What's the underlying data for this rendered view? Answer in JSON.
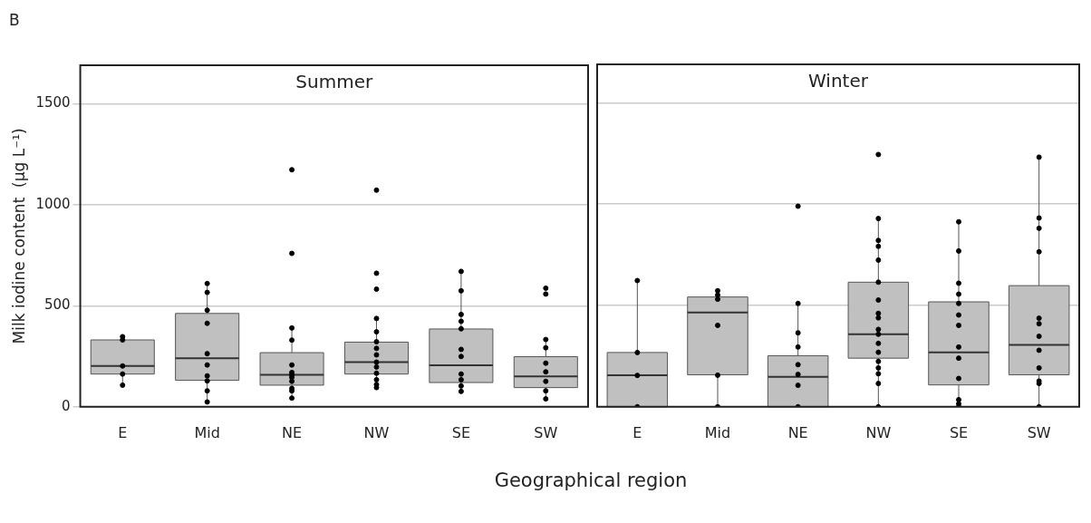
{
  "chart_data": [
    {
      "type": "box",
      "title": "Summer",
      "ylabel": "Milk iodine content  (µg L⁻¹)",
      "xlabel": "Geographical region",
      "annotations": [
        "B"
      ],
      "categories": [
        "E",
        "Mid",
        "NE",
        "NW",
        "SE",
        "SW"
      ],
      "ylim": [
        0,
        1690
      ],
      "yticks": [
        0,
        500,
        1000,
        1500
      ],
      "grid": "y",
      "color": "#c0c0c0",
      "boxes": [
        {
          "low": 107,
          "q1": 162,
          "median": 202,
          "q3": 331,
          "high": 347
        },
        {
          "low": 24,
          "q1": 131,
          "median": 240,
          "q3": 462,
          "high": 610
        },
        {
          "low": 43,
          "q1": 107,
          "median": 158,
          "q3": 268,
          "high": 390
        },
        {
          "low": 95,
          "q1": 162,
          "median": 221,
          "q3": 320,
          "high": 437
        },
        {
          "low": 76,
          "q1": 120,
          "median": 205,
          "q3": 385,
          "high": 670
        },
        {
          "low": 39,
          "q1": 95,
          "median": 151,
          "q3": 248,
          "high": 333
        }
      ],
      "series": [
        {
          "type": "scatter",
          "color": "#000000",
          "marker": "circle",
          "x": [
            "E",
            "E",
            "E",
            "E",
            "E",
            "Mid",
            "Mid",
            "Mid",
            "Mid",
            "Mid",
            "Mid",
            "Mid",
            "Mid",
            "Mid",
            "Mid",
            "NE",
            "NE",
            "NE",
            "NE",
            "NE",
            "NE",
            "NE",
            "NE",
            "NE",
            "NE",
            "NE",
            "NE",
            "NW",
            "NW",
            "NW",
            "NW",
            "NW",
            "NW",
            "NW",
            "NW",
            "NW",
            "NW",
            "NW",
            "NW",
            "NW",
            "NW",
            "SE",
            "SE",
            "SE",
            "SE",
            "SE",
            "SE",
            "SE",
            "SE",
            "SE",
            "SE",
            "SE",
            "SW",
            "SW",
            "SW",
            "SW",
            "SW",
            "SW",
            "SW",
            "SW",
            "SW"
          ],
          "values": [
            347,
            331,
            202,
            162,
            107,
            610,
            566,
            478,
            413,
            263,
            207,
            153,
            128,
            79,
            24,
            1173,
            759,
            390,
            330,
            207,
            170,
            158,
            145,
            126,
            91,
            79,
            43,
            1072,
            661,
            582,
            437,
            371,
            322,
            289,
            257,
            221,
            197,
            166,
            134,
            110,
            95,
            670,
            574,
            457,
            423,
            386,
            284,
            249,
            162,
            134,
            103,
            76,
            587,
            558,
            333,
            292,
            216,
            173,
            126,
            79,
            39
          ]
        }
      ]
    },
    {
      "type": "box",
      "title": "Winter",
      "categories": [
        "E",
        "Mid",
        "NE",
        "NW",
        "SE",
        "SW"
      ],
      "ylim": [
        0,
        1690
      ],
      "yticks": [
        0,
        500,
        1000,
        1500
      ],
      "grid": "y",
      "tick_labels": "x",
      "color": "#c0c0c0",
      "boxes": [
        {
          "low": 0,
          "q1": 0,
          "median": 156,
          "q3": 268,
          "high": 623
        },
        {
          "low": 0,
          "q1": 158,
          "median": 465,
          "q3": 542,
          "high": 573
        },
        {
          "low": 0,
          "q1": 0,
          "median": 148,
          "q3": 252,
          "high": 510
        },
        {
          "low": 0,
          "q1": 240,
          "median": 358,
          "q3": 615,
          "high": 929
        },
        {
          "low": 0,
          "q1": 108,
          "median": 269,
          "q3": 518,
          "high": 913
        },
        {
          "low": 0,
          "q1": 158,
          "median": 306,
          "q3": 598,
          "high": 1232
        }
      ],
      "series": [
        {
          "type": "scatter",
          "color": "#000000",
          "marker": "circle",
          "x": [
            "E",
            "E",
            "E",
            "E",
            "Mid",
            "Mid",
            "Mid",
            "Mid",
            "Mid",
            "Mid",
            "NE",
            "NE",
            "NE",
            "NE",
            "NE",
            "NE",
            "NE",
            "NE",
            "NW",
            "NW",
            "NW",
            "NW",
            "NW",
            "NW",
            "NW",
            "NW",
            "NW",
            "NW",
            "NW",
            "NW",
            "NW",
            "NW",
            "NW",
            "NW",
            "NW",
            "NW",
            "SE",
            "SE",
            "SE",
            "SE",
            "SE",
            "SE",
            "SE",
            "SE",
            "SE",
            "SE",
            "SE",
            "SE",
            "SE",
            "SW",
            "SW",
            "SW",
            "SW",
            "SW",
            "SW",
            "SW",
            "SW",
            "SW",
            "SW",
            "SW",
            "SW"
          ],
          "values": [
            623,
            268,
            155,
            0,
            573,
            552,
            531,
            402,
            156,
            0,
            990,
            510,
            365,
            295,
            208,
            160,
            106,
            0,
            1245,
            929,
            821,
            792,
            724,
            615,
            527,
            461,
            439,
            382,
            358,
            313,
            269,
            224,
            192,
            163,
            115,
            0,
            913,
            769,
            610,
            556,
            510,
            453,
            402,
            295,
            240,
            140,
            35,
            15,
            0,
            1232,
            932,
            881,
            765,
            437,
            410,
            348,
            279,
            192,
            127,
            115,
            0
          ]
        }
      ]
    }
  ]
}
